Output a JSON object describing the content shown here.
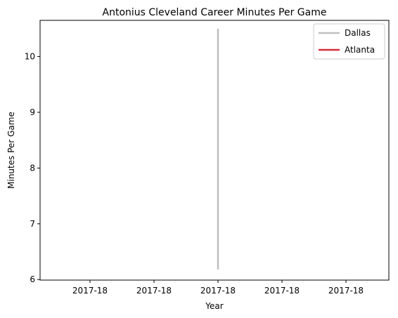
{
  "chart_data": {
    "type": "line",
    "title": "Antonius Cleveland Career Minutes Per Game",
    "xlabel": "Year",
    "ylabel": "Minutes Per Game",
    "x_tick_labels": [
      "2017-18",
      "2017-18",
      "2017-18",
      "2017-18",
      "2017-18"
    ],
    "y_ticks": [
      6,
      7,
      8,
      9,
      10
    ],
    "ylim": [
      5.99,
      10.65
    ],
    "grid": false,
    "legend_position": "top-right",
    "series": [
      {
        "name": "Dallas",
        "color": "#bfbfbf",
        "x": [
          "2017-18",
          "2017-18"
        ],
        "y": [
          6.18,
          10.5
        ]
      },
      {
        "name": "Atlanta",
        "color": "#d62f37",
        "x": [
          "2017-18"
        ],
        "y": [
          6.18
        ]
      }
    ]
  }
}
